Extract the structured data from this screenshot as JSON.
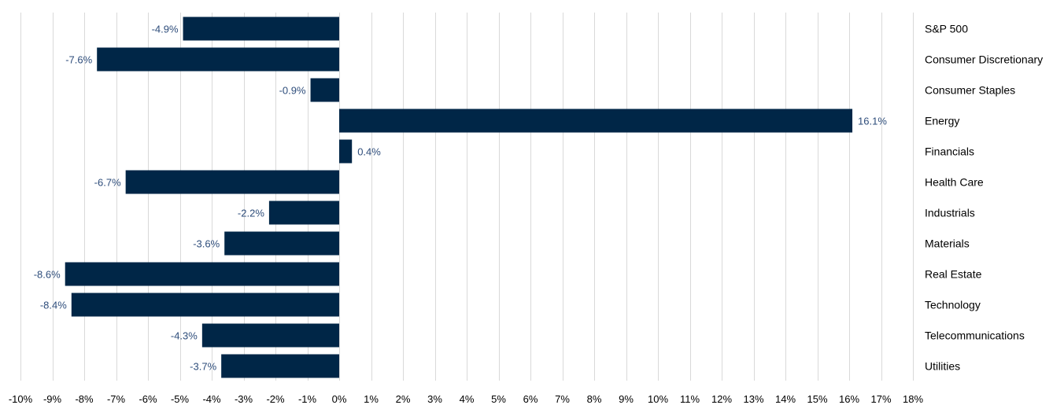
{
  "chart_data": {
    "type": "bar",
    "orientation": "horizontal",
    "categories": [
      "S&P 500",
      "Consumer Discretionary",
      "Consumer Staples",
      "Energy",
      "Financials",
      "Health Care",
      "Industrials",
      "Materials",
      "Real Estate",
      "Technology",
      "Telecommunications",
      "Utilities"
    ],
    "values": [
      -4.9,
      -7.6,
      -0.9,
      16.1,
      0.4,
      -6.7,
      -2.2,
      -3.6,
      -8.6,
      -8.4,
      -4.3,
      -3.7
    ],
    "data_labels": [
      "-4.9%",
      "-7.6%",
      "-0.9%",
      "16.1%",
      "0.4%",
      "-6.7%",
      "-2.2%",
      "-3.6%",
      "-8.6%",
      "-8.4%",
      "-4.3%",
      "-3.7%"
    ],
    "xlim": [
      -10,
      18
    ],
    "x_ticks": [
      -10,
      -9,
      -8,
      -7,
      -6,
      -5,
      -4,
      -3,
      -2,
      -1,
      0,
      1,
      2,
      3,
      4,
      5,
      6,
      7,
      8,
      9,
      10,
      11,
      12,
      13,
      14,
      15,
      16,
      17,
      18
    ],
    "x_tick_labels": [
      "-10%",
      "-9%",
      "-8%",
      "-7%",
      "-6%",
      "-5%",
      "-4%",
      "-3%",
      "-2%",
      "-1%",
      "0%",
      "1%",
      "2%",
      "3%",
      "4%",
      "5%",
      "6%",
      "7%",
      "8%",
      "9%",
      "10%",
      "11%",
      "12%",
      "13%",
      "14%",
      "15%",
      "16%",
      "17%",
      "18%"
    ],
    "grid": "vertical",
    "legend": "none",
    "title": "",
    "xlabel": "",
    "ylabel": "",
    "category_labels_position": "right",
    "colors": {
      "bar": "#002647",
      "data_label": "#2e4d7b",
      "gridline": "#d9d9d9",
      "text": "#000000"
    }
  }
}
